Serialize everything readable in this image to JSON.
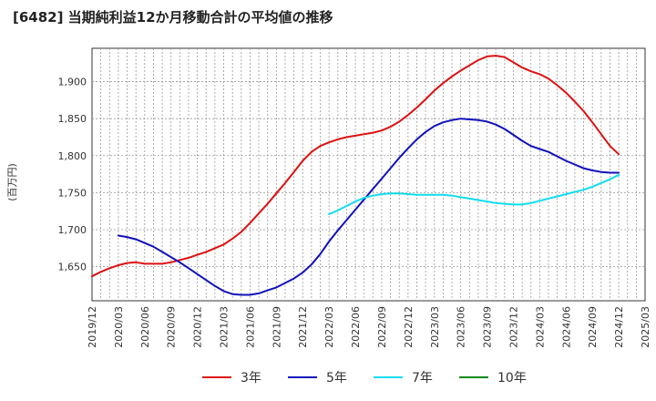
{
  "title": "[6482]  当期純利益12か月移動合計の平均値の推移",
  "ylabel": "(百万円)",
  "chart_data": {
    "type": "line",
    "title": "[6482]  当期純利益12か月移動合計の平均値の推移",
    "ylabel": "(百万円)",
    "xlabel": "",
    "ylim": [
      1604,
      1945
    ],
    "yticks": [
      1650,
      1700,
      1750,
      1800,
      1850,
      1900
    ],
    "ytick_labels": [
      "1,650",
      "1,700",
      "1,750",
      "1,800",
      "1,850",
      "1,900"
    ],
    "xticks": [
      "2019/12",
      "2020/03",
      "2020/06",
      "2020/09",
      "2020/12",
      "2021/03",
      "2021/06",
      "2021/09",
      "2021/12",
      "2022/03",
      "2022/06",
      "2022/09",
      "2022/12",
      "2023/03",
      "2023/06",
      "2023/09",
      "2023/12",
      "2024/03",
      "2024/06",
      "2024/09",
      "2024/12",
      "2025/03"
    ],
    "grid": true,
    "legend_position": "bottom",
    "series": [
      {
        "name": "3年",
        "color": "#dd1111",
        "x": [
          "2019/12",
          "2020/01",
          "2020/02",
          "2020/03",
          "2020/04",
          "2020/05",
          "2020/06",
          "2020/07",
          "2020/08",
          "2020/09",
          "2020/10",
          "2020/11",
          "2020/12",
          "2021/01",
          "2021/02",
          "2021/03",
          "2021/04",
          "2021/05",
          "2021/06",
          "2021/07",
          "2021/08",
          "2021/09",
          "2021/10",
          "2021/11",
          "2021/12",
          "2022/01",
          "2022/02",
          "2022/03",
          "2022/04",
          "2022/05",
          "2022/06",
          "2022/07",
          "2022/08",
          "2022/09",
          "2022/10",
          "2022/11",
          "2022/12",
          "2023/01",
          "2023/02",
          "2023/03",
          "2023/04",
          "2023/05",
          "2023/06",
          "2023/07",
          "2023/08",
          "2023/09",
          "2023/10",
          "2023/11",
          "2023/12",
          "2024/01",
          "2024/02",
          "2024/03",
          "2024/04",
          "2024/05",
          "2024/06",
          "2024/07",
          "2024/08",
          "2024/09",
          "2024/10",
          "2024/11",
          "2024/12"
        ],
        "values": [
          1637,
          1643,
          1648,
          1652,
          1655,
          1656,
          1654,
          1654,
          1654,
          1656,
          1659,
          1662,
          1666,
          1670,
          1675,
          1680,
          1688,
          1697,
          1709,
          1722,
          1735,
          1749,
          1763,
          1778,
          1793,
          1805,
          1813,
          1818,
          1822,
          1825,
          1827,
          1829,
          1831,
          1834,
          1839,
          1846,
          1855,
          1865,
          1876,
          1888,
          1898,
          1907,
          1915,
          1922,
          1929,
          1934,
          1935,
          1933,
          1926,
          1919,
          1914,
          1910,
          1904,
          1895,
          1885,
          1873,
          1860,
          1845,
          1829,
          1813,
          1802
        ]
      },
      {
        "name": "5年",
        "color": "#1111bb",
        "x": [
          "2020/03",
          "2020/04",
          "2020/05",
          "2020/06",
          "2020/07",
          "2020/08",
          "2020/09",
          "2020/10",
          "2020/11",
          "2020/12",
          "2021/01",
          "2021/02",
          "2021/03",
          "2021/04",
          "2021/05",
          "2021/06",
          "2021/07",
          "2021/08",
          "2021/09",
          "2021/10",
          "2021/11",
          "2021/12",
          "2022/01",
          "2022/02",
          "2022/03",
          "2022/04",
          "2022/05",
          "2022/06",
          "2022/07",
          "2022/08",
          "2022/09",
          "2022/10",
          "2022/11",
          "2022/12",
          "2023/01",
          "2023/02",
          "2023/03",
          "2023/04",
          "2023/05",
          "2023/06",
          "2023/07",
          "2023/08",
          "2023/09",
          "2023/10",
          "2023/11",
          "2023/12",
          "2024/01",
          "2024/02",
          "2024/03",
          "2024/04",
          "2024/05",
          "2024/06",
          "2024/07",
          "2024/08",
          "2024/09",
          "2024/10",
          "2024/11",
          "2024/12"
        ],
        "values": [
          1692,
          1690,
          1687,
          1682,
          1677,
          1670,
          1663,
          1656,
          1648,
          1640,
          1632,
          1624,
          1617,
          1613,
          1612,
          1612,
          1614,
          1618,
          1622,
          1628,
          1634,
          1642,
          1653,
          1667,
          1684,
          1699,
          1713,
          1727,
          1741,
          1755,
          1769,
          1783,
          1797,
          1810,
          1822,
          1832,
          1840,
          1845,
          1848,
          1850,
          1849,
          1848,
          1846,
          1842,
          1836,
          1828,
          1820,
          1813,
          1809,
          1805,
          1799,
          1793,
          1788,
          1783,
          1780,
          1778,
          1777,
          1777
        ]
      },
      {
        "name": "7年",
        "color": "#11ddee",
        "x": [
          "2022/03",
          "2022/04",
          "2022/05",
          "2022/06",
          "2022/07",
          "2022/08",
          "2022/09",
          "2022/10",
          "2022/11",
          "2022/12",
          "2023/01",
          "2023/02",
          "2023/03",
          "2023/04",
          "2023/05",
          "2023/06",
          "2023/07",
          "2023/08",
          "2023/09",
          "2023/10",
          "2023/11",
          "2023/12",
          "2024/01",
          "2024/02",
          "2024/03",
          "2024/04",
          "2024/05",
          "2024/06",
          "2024/07",
          "2024/08",
          "2024/09",
          "2024/10",
          "2024/11",
          "2024/12"
        ],
        "values": [
          1721,
          1726,
          1732,
          1738,
          1743,
          1746,
          1748,
          1749,
          1749,
          1748,
          1747,
          1747,
          1747,
          1747,
          1746,
          1744,
          1742,
          1740,
          1738,
          1736,
          1735,
          1734,
          1734,
          1736,
          1739,
          1742,
          1745,
          1748,
          1751,
          1754,
          1758,
          1763,
          1768,
          1774
        ]
      },
      {
        "name": "10年",
        "color": "#118811",
        "x": [],
        "values": []
      }
    ]
  }
}
